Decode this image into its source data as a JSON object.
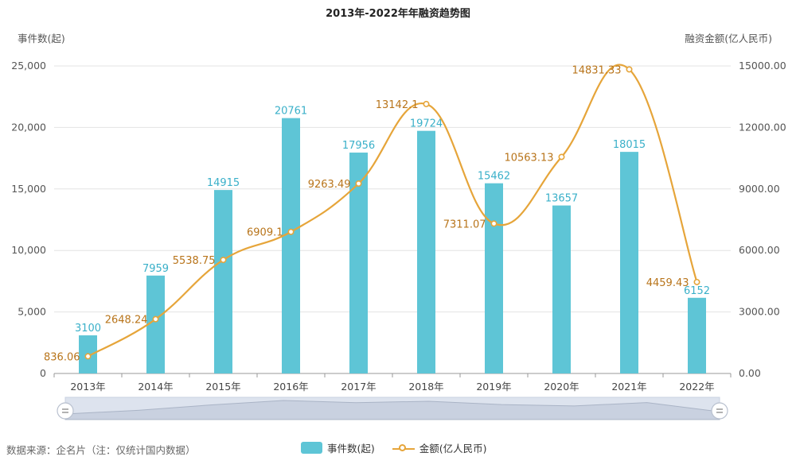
{
  "title": "2013年-2022年年融资趋势图",
  "left_axis_name": "事件数(起)",
  "right_axis_name": "融资金额(亿人民币)",
  "source": "数据来源：企名片（注：仅统计国内数据）",
  "colors": {
    "bar": "#5ec5d6",
    "bar_label": "#3ab0c9",
    "line": "#e6a53a",
    "line_label": "#b8741a",
    "grid": "#e3e3e3"
  },
  "chart_data": {
    "type": "bar",
    "categories": [
      "2013年",
      "2014年",
      "2015年",
      "2016年",
      "2017年",
      "2018年",
      "2019年",
      "2020年",
      "2021年",
      "2022年"
    ],
    "series": [
      {
        "name": "事件数(起)",
        "type": "bar",
        "axis": "left",
        "values": [
          3100,
          7959,
          14915,
          20761,
          17956,
          19724,
          15462,
          13657,
          18015,
          6152
        ],
        "labels": [
          "3100",
          "7959",
          "14915",
          "20761",
          "17956",
          "19724",
          "15462",
          "13657",
          "18015",
          "6152"
        ]
      },
      {
        "name": "金额(亿人民币)",
        "type": "line",
        "axis": "right",
        "values": [
          836.06,
          2648.24,
          5538.75,
          6909.1,
          9263.49,
          13142.1,
          7311.07,
          10563.13,
          14831.33,
          4459.43
        ],
        "labels": [
          "836.06",
          "2648.24",
          "5538.75",
          "6909.1",
          "9263.49",
          "13142.1",
          "7311.07",
          "10563.13",
          "14831.33",
          "4459.43"
        ]
      }
    ],
    "y_left": {
      "min": 0,
      "max": 25000,
      "ticks": [
        0,
        5000,
        10000,
        15000,
        20000,
        25000
      ],
      "tick_labels": [
        "0",
        "5,000",
        "10,000",
        "15,000",
        "20,000",
        "25,000"
      ]
    },
    "y_right": {
      "min": 0,
      "max": 15000,
      "ticks": [
        0,
        3000,
        6000,
        9000,
        12000,
        15000
      ],
      "tick_labels": [
        "0.00",
        "3000.00",
        "6000.00",
        "9000.00",
        "12000.00",
        "15000.00"
      ]
    },
    "grid": true,
    "legend_position": "bottom-center"
  }
}
